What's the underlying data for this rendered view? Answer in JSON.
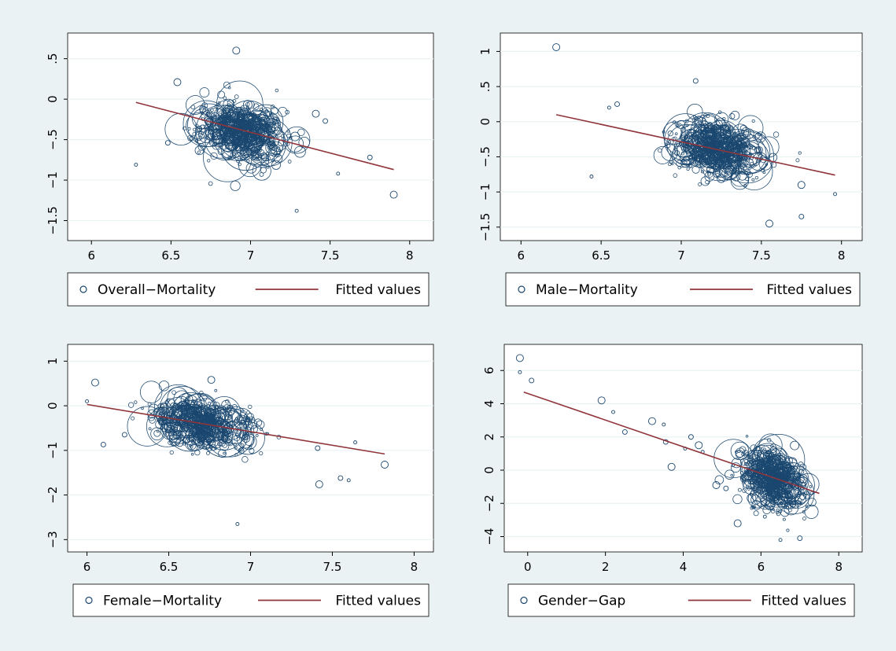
{
  "chart_data": [
    {
      "type": "scatter",
      "title": "",
      "xlabel": "",
      "ylabel": "",
      "xlim": [
        5.9,
        8.1
      ],
      "ylim": [
        -1.65,
        0.72
      ],
      "xticks": [
        "6",
        "6.5",
        "7",
        "7.5",
        "8"
      ],
      "xtick_values": [
        6,
        6.5,
        7,
        7.5,
        8
      ],
      "yticks": [
        "−1.5",
        "−1",
        "−.5",
        "0",
        ".5"
      ],
      "ytick_values": [
        -1.5,
        -1,
        -0.5,
        0,
        0.5
      ],
      "grid": true,
      "legend_position": "bottom",
      "series": [
        {
          "name": "Overall−Mortality",
          "marker": "hollow-circle",
          "color": "#1a476f",
          "cloud": {
            "cx": 6.95,
            "cy": -0.4,
            "sx": 0.13,
            "sy": 0.17,
            "slope": -0.35,
            "n": 700
          },
          "points": [
            [
              6.91,
              0.6
            ],
            [
              6.28,
              -0.81
            ],
            [
              6.48,
              -0.54
            ],
            [
              6.54,
              0.21
            ],
            [
              7.55,
              -0.92
            ],
            [
              7.75,
              -0.72
            ],
            [
              7.9,
              -1.18
            ],
            [
              7.29,
              -1.38
            ],
            [
              7.47,
              -0.27
            ],
            [
              7.41,
              -0.18
            ]
          ]
        },
        {
          "name": "Fitted values",
          "type": "line",
          "color": "#90353b",
          "x": [
            6.28,
            7.9
          ],
          "y": [
            -0.04,
            -0.87
          ]
        }
      ]
    },
    {
      "type": "scatter",
      "title": "",
      "xlabel": "",
      "ylabel": "",
      "xlim": [
        5.92,
        8.08
      ],
      "ylim": [
        -1.58,
        1.15
      ],
      "xticks": [
        "6",
        "6.5",
        "7",
        "7.5",
        "8"
      ],
      "xtick_values": [
        6,
        6.5,
        7,
        7.5,
        8
      ],
      "yticks": [
        "−1.5",
        "−1",
        "−.5",
        "0",
        ".5",
        "1"
      ],
      "ytick_values": [
        -1.5,
        -1,
        -0.5,
        0,
        0.5,
        1
      ],
      "grid": true,
      "legend_position": "bottom",
      "series": [
        {
          "name": "Male−Mortality",
          "marker": "hollow-circle",
          "color": "#1a476f",
          "cloud": {
            "cx": 7.23,
            "cy": -0.38,
            "sx": 0.13,
            "sy": 0.18,
            "slope": -0.3,
            "n": 700
          },
          "points": [
            [
              6.22,
              1.06
            ],
            [
              6.44,
              -0.78
            ],
            [
              7.09,
              0.58
            ],
            [
              7.75,
              -0.9
            ],
            [
              7.96,
              -1.03
            ],
            [
              7.75,
              -1.35
            ],
            [
              7.55,
              -1.45
            ],
            [
              6.55,
              0.2
            ],
            [
              6.6,
              0.25
            ]
          ]
        },
        {
          "name": "Fitted values",
          "type": "line",
          "color": "#90353b",
          "x": [
            6.22,
            7.96
          ],
          "y": [
            0.1,
            -0.76
          ]
        }
      ]
    },
    {
      "type": "scatter",
      "title": "",
      "xlabel": "",
      "ylabel": "",
      "xlim": [
        5.93,
        8.07
      ],
      "ylim": [
        -3.1,
        1.2
      ],
      "xticks": [
        "6",
        "6.5",
        "7",
        "7.5",
        "8"
      ],
      "xtick_values": [
        6,
        6.5,
        7,
        7.5,
        8
      ],
      "yticks": [
        "−3",
        "−2",
        "−1",
        "0",
        "1"
      ],
      "ytick_values": [
        -3,
        -2,
        -1,
        0,
        1
      ],
      "grid": true,
      "legend_position": "bottom",
      "series": [
        {
          "name": "Female−Mortality",
          "marker": "hollow-circle",
          "color": "#1a476f",
          "cloud": {
            "cx": 6.7,
            "cy": -0.4,
            "sx": 0.15,
            "sy": 0.24,
            "slope": -0.45,
            "n": 700
          },
          "points": [
            [
              6.05,
              0.52
            ],
            [
              6.0,
              0.1
            ],
            [
              6.23,
              -0.65
            ],
            [
              6.76,
              0.58
            ],
            [
              6.92,
              -2.65
            ],
            [
              7.41,
              -0.95
            ],
            [
              7.82,
              -1.32
            ],
            [
              7.64,
              -0.82
            ],
            [
              7.55,
              -1.62
            ],
            [
              7.42,
              -1.76
            ],
            [
              7.6,
              -1.67
            ],
            [
              6.1,
              -0.87
            ]
          ]
        },
        {
          "name": "Fitted values",
          "type": "line",
          "color": "#90353b",
          "x": [
            6.0,
            7.82
          ],
          "y": [
            0.03,
            -1.08
          ]
        }
      ]
    },
    {
      "type": "scatter",
      "title": "",
      "xlabel": "",
      "ylabel": "",
      "xlim": [
        -0.4,
        8.4
      ],
      "ylim": [
        -4.45,
        7.1
      ],
      "xticks": [
        "0",
        "2",
        "4",
        "6",
        "8"
      ],
      "xtick_values": [
        0,
        2,
        4,
        6,
        8
      ],
      "yticks": [
        "−4",
        "−2",
        "0",
        "2",
        "4",
        "6"
      ],
      "ytick_values": [
        -4,
        -2,
        0,
        2,
        4,
        6
      ],
      "grid": true,
      "legend_position": "bottom",
      "series": [
        {
          "name": "Gender−Gap",
          "marker": "hollow-circle",
          "color": "#1a476f",
          "cloud": {
            "cx": 6.3,
            "cy": -0.5,
            "sx": 0.38,
            "sy": 0.8,
            "slope": -0.8,
            "n": 700
          },
          "points": [
            [
              -0.2,
              6.75
            ],
            [
              -0.2,
              5.9
            ],
            [
              0.1,
              5.4
            ],
            [
              1.9,
              4.2
            ],
            [
              2.2,
              3.5
            ],
            [
              2.5,
              2.3
            ],
            [
              3.2,
              2.95
            ],
            [
              3.5,
              2.75
            ],
            [
              3.55,
              1.7
            ],
            [
              3.7,
              0.2
            ],
            [
              4.05,
              1.3
            ],
            [
              4.2,
              2.0
            ],
            [
              4.4,
              1.5
            ],
            [
              4.5,
              1.1
            ],
            [
              5.1,
              -1.1
            ],
            [
              5.4,
              -3.2
            ],
            [
              6.5,
              -4.2
            ],
            [
              7.0,
              -4.1
            ],
            [
              4.85,
              -0.9
            ],
            [
              6.1,
              -2.8
            ]
          ]
        },
        {
          "name": "Fitted values",
          "type": "line",
          "color": "#90353b",
          "x": [
            -0.1,
            7.5
          ],
          "y": [
            4.7,
            -1.4
          ]
        }
      ]
    }
  ]
}
